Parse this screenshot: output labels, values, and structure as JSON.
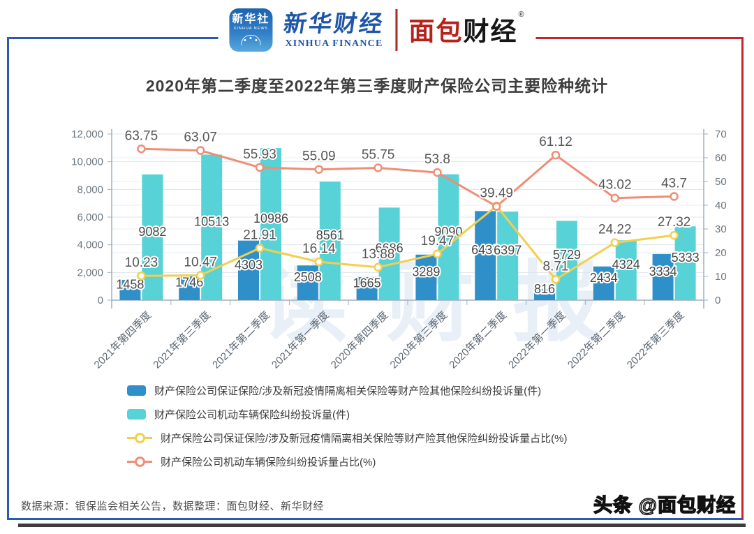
{
  "header": {
    "xinhua_icon": {
      "title": "新华社",
      "subtitle": "XINHUA NEWS"
    },
    "xinhua_finance": {
      "cn": "新华财经",
      "en": "XINHUA FINANCE"
    },
    "mianbao": {
      "part1": "面包",
      "part2": "财经",
      "reg": "®"
    }
  },
  "watermark": "读财报",
  "chart_data": {
    "type": "bar+line combo (dual axis)",
    "title": "2020年第二季度至2022年第三季度财产保险公司主要险种统计",
    "categories": [
      "2021年第四季度",
      "2021年第三季度",
      "2021年第二季度",
      "2021年第一季度",
      "2020年第四季度",
      "2020年第三季度",
      "2020年第二季度",
      "2022年第一季度",
      "2022年第二季度",
      "2022年第三季度"
    ],
    "left_axis": {
      "min": 0,
      "max": 12000,
      "tick_values": [
        0,
        2000,
        4000,
        6000,
        8000,
        10000,
        12000
      ],
      "tick_labels": [
        "0",
        "2,000",
        "4,000",
        "6,000",
        "8,000",
        "10,000",
        "12,000"
      ]
    },
    "right_axis": {
      "min": 0,
      "max": 70,
      "tick_values": [
        0,
        10,
        20,
        30,
        40,
        50,
        60,
        70
      ],
      "tick_labels": [
        "0",
        "10",
        "20",
        "30",
        "40",
        "50",
        "60",
        "70"
      ]
    },
    "grid": true,
    "legend_position": "bottom-left",
    "series": [
      {
        "name": "财产保险公司保证保险/涉及新冠疫情隔离相关保险等财产险其他保险纠纷投诉量(件)",
        "type": "bar",
        "axis": "left",
        "color": "#2f8fc9",
        "values": [
          1458,
          1746,
          4303,
          2508,
          1665,
          3289,
          6433,
          816,
          2434,
          3334
        ],
        "labels": [
          "1458",
          "1746",
          "4303",
          "2508",
          "1665",
          "3289",
          "6433",
          "816",
          "2434",
          "3334"
        ]
      },
      {
        "name": "财产保险公司机动车辆保险纠纷投诉量(件)",
        "type": "bar",
        "axis": "left",
        "color": "#57d2d6",
        "values": [
          9082,
          10513,
          10986,
          8561,
          6686,
          9090,
          6397,
          5729,
          4324,
          5333
        ],
        "labels": [
          "9082",
          "10513",
          "10986",
          "8561",
          "6686",
          "9090",
          "6397",
          "5729",
          "4324",
          "5333"
        ]
      },
      {
        "name": "财产保险公司保证保险/涉及新冠疫情隔离相关保险等财产险其他保险纠纷投诉量占比(%)",
        "type": "line",
        "axis": "right",
        "color": "#f2cf4d",
        "values": [
          10.23,
          10.47,
          21.91,
          16.14,
          13.88,
          19.47,
          39.7,
          8.71,
          24.22,
          27.32
        ],
        "labels": [
          "10.23",
          "10.47",
          "21.91",
          "16.14",
          "13.88",
          "19.47",
          "",
          "8.71",
          "24.22",
          "27.32"
        ]
      },
      {
        "name": "财产保险公司机动车辆保险纠纷投诉量占比(%)",
        "type": "line",
        "axis": "right",
        "color": "#ef8e76",
        "values": [
          63.75,
          63.07,
          55.93,
          55.09,
          55.75,
          53.8,
          39.49,
          61.12,
          43.02,
          43.7
        ],
        "labels": [
          "63.75",
          "63.07",
          "55.93",
          "55.09",
          "55.75",
          "53.8",
          "39.49",
          "61.12",
          "43.02",
          "43.7"
        ]
      }
    ]
  },
  "footer": {
    "source": "数据来源：银保监会相关公告，数据整理：面包财经、新华财经",
    "byline": "头条 @面包财经"
  },
  "colors": {
    "frame_blue": "#2a5ca8",
    "frame_red": "#c1272d",
    "bar_blue": "#2f8fc9",
    "bar_cyan": "#57d2d6",
    "line_yellow": "#f2cf4d",
    "line_orange": "#ef8e76"
  }
}
